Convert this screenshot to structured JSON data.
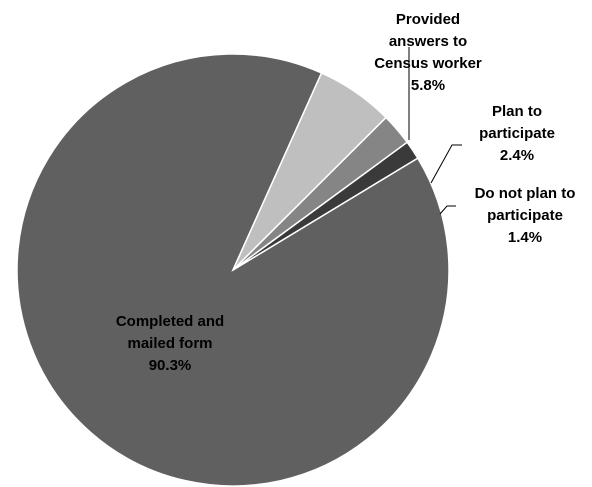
{
  "chart_data": {
    "type": "pie",
    "title": "",
    "slices": [
      {
        "label_lines": [
          "Completed and",
          "mailed form"
        ],
        "pct_text": "90.3%",
        "value": 90.3,
        "color": "#606060"
      },
      {
        "label_lines": [
          "Provided",
          "answers to",
          "Census worker"
        ],
        "pct_text": "5.8%",
        "value": 5.8,
        "color": "#bfbfbf"
      },
      {
        "label_lines": [
          "Plan to",
          "participate"
        ],
        "pct_text": "2.4%",
        "value": 2.4,
        "color": "#858585"
      },
      {
        "label_lines": [
          "Do not plan to",
          "participate"
        ],
        "pct_text": "1.4%",
        "value": 1.4,
        "color": "#3a3a3a"
      }
    ],
    "legend": "none",
    "label_position": "outside with leader lines (largest slice labeled inside)"
  }
}
